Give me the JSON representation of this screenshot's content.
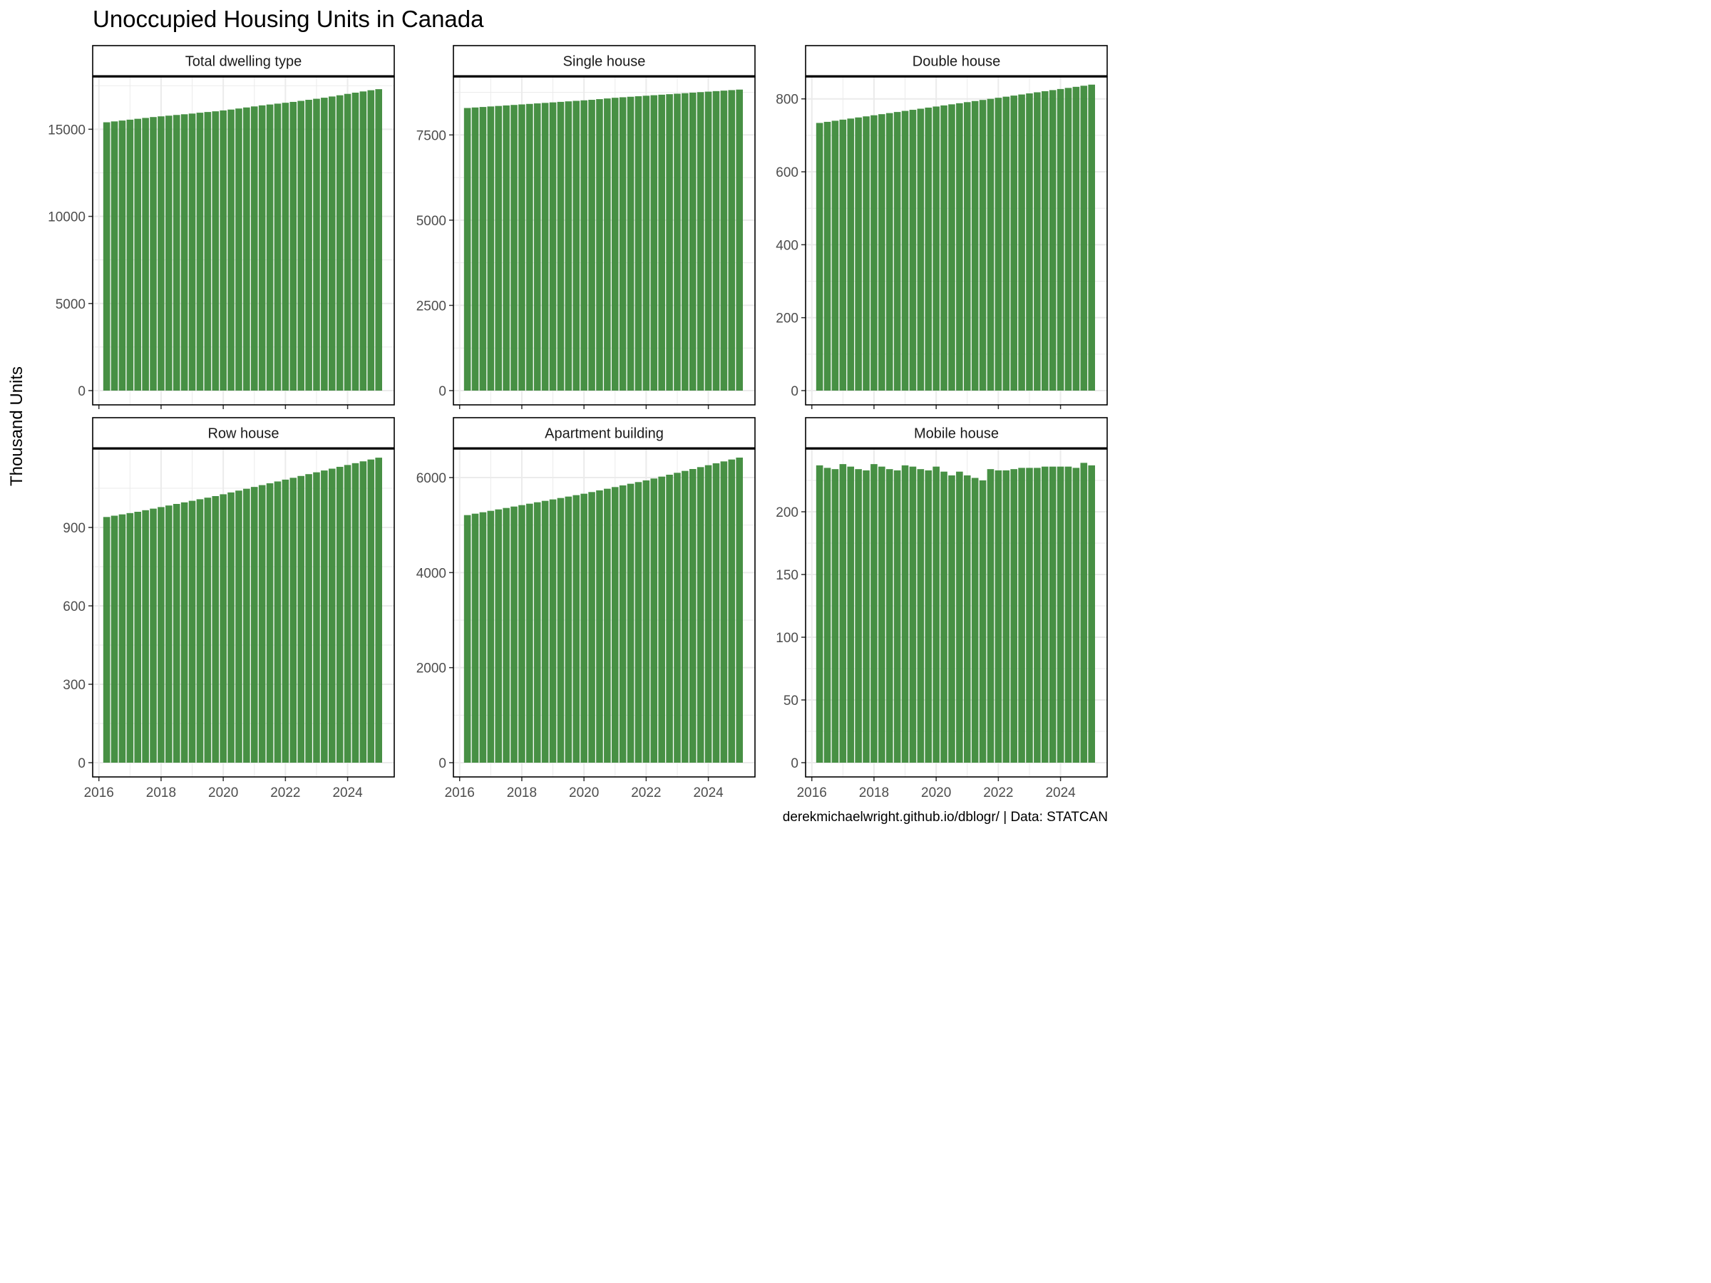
{
  "title": "Unoccupied Housing Units in Canada",
  "ylabel": "Thousand Units",
  "caption": "derekmichaelwright.github.io/dblogr/ | Data: STATCAN",
  "colors": {
    "bar": "#3d8a3a",
    "grid": "#ebebeb",
    "border": "#000000",
    "tick_text": "#4d4d4d"
  },
  "chart_data": [
    {
      "type": "bar",
      "title": "Total dwelling type",
      "x_start": 2016.25,
      "x_step": 0.25,
      "xlim": [
        2015.8,
        2025.5
      ],
      "x_ticks": [
        2016,
        2018,
        2020,
        2022,
        2024
      ],
      "ylim": [
        0,
        18000
      ],
      "y_ticks": [
        0,
        5000,
        10000,
        15000
      ],
      "values": [
        15400,
        15450,
        15500,
        15550,
        15600,
        15650,
        15700,
        15740,
        15780,
        15820,
        15860,
        15900,
        15950,
        15990,
        16030,
        16080,
        16130,
        16190,
        16250,
        16310,
        16370,
        16420,
        16470,
        16520,
        16570,
        16630,
        16690,
        16750,
        16810,
        16880,
        16950,
        17030,
        17100,
        17170,
        17240,
        17300
      ]
    },
    {
      "type": "bar",
      "title": "Single house",
      "x_start": 2016.25,
      "x_step": 0.25,
      "xlim": [
        2015.8,
        2025.5
      ],
      "x_ticks": [
        2016,
        2018,
        2020,
        2022,
        2024
      ],
      "ylim": [
        0,
        9200
      ],
      "y_ticks": [
        0,
        2500,
        5000,
        7500
      ],
      "values": [
        8290,
        8305,
        8320,
        8335,
        8350,
        8365,
        8380,
        8395,
        8410,
        8425,
        8440,
        8455,
        8470,
        8485,
        8500,
        8515,
        8530,
        8550,
        8570,
        8590,
        8605,
        8620,
        8635,
        8650,
        8665,
        8680,
        8695,
        8710,
        8725,
        8740,
        8755,
        8770,
        8785,
        8800,
        8815,
        8830
      ]
    },
    {
      "type": "bar",
      "title": "Double house",
      "x_start": 2016.25,
      "x_step": 0.25,
      "xlim": [
        2015.8,
        2025.5
      ],
      "x_ticks": [
        2016,
        2018,
        2020,
        2022,
        2024
      ],
      "ylim": [
        0,
        860
      ],
      "y_ticks": [
        0,
        200,
        400,
        600,
        800
      ],
      "values": [
        734,
        737,
        740,
        743,
        746,
        749,
        752,
        755,
        758,
        761,
        764,
        767,
        770,
        773,
        776,
        779,
        782,
        785,
        788,
        791,
        794,
        797,
        800,
        803,
        806,
        809,
        812,
        815,
        818,
        821,
        824,
        827,
        830,
        833,
        836,
        839
      ]
    },
    {
      "type": "bar",
      "title": "Row house",
      "x_start": 2016.25,
      "x_step": 0.25,
      "xlim": [
        2015.8,
        2025.5
      ],
      "x_ticks": [
        2016,
        2018,
        2020,
        2022,
        2024
      ],
      "ylim": [
        0,
        1200
      ],
      "y_ticks": [
        0,
        300,
        600,
        900
      ],
      "values": [
        940,
        945,
        950,
        955,
        960,
        966,
        972,
        978,
        984,
        990,
        996,
        1002,
        1008,
        1014,
        1020,
        1027,
        1034,
        1041,
        1048,
        1055,
        1062,
        1069,
        1076,
        1083,
        1090,
        1097,
        1104,
        1111,
        1118,
        1125,
        1132,
        1139,
        1146,
        1153,
        1160,
        1167
      ]
    },
    {
      "type": "bar",
      "title": "Apartment building",
      "x_start": 2016.25,
      "x_step": 0.25,
      "xlim": [
        2015.8,
        2025.5
      ],
      "x_ticks": [
        2016,
        2018,
        2020,
        2022,
        2024
      ],
      "ylim": [
        0,
        6600
      ],
      "y_ticks": [
        0,
        2000,
        4000,
        6000
      ],
      "values": [
        5210,
        5240,
        5270,
        5300,
        5330,
        5360,
        5390,
        5420,
        5450,
        5480,
        5510,
        5540,
        5570,
        5600,
        5630,
        5660,
        5695,
        5730,
        5765,
        5800,
        5835,
        5870,
        5905,
        5940,
        5980,
        6020,
        6060,
        6100,
        6140,
        6180,
        6220,
        6260,
        6300,
        6340,
        6380,
        6420
      ]
    },
    {
      "type": "bar",
      "title": "Mobile house",
      "x_start": 2016.25,
      "x_step": 0.25,
      "xlim": [
        2015.8,
        2025.5
      ],
      "x_ticks": [
        2016,
        2018,
        2020,
        2022,
        2024
      ],
      "ylim": [
        0,
        250
      ],
      "y_ticks": [
        0,
        50,
        100,
        150,
        200
      ],
      "values": [
        237,
        235,
        234,
        238,
        236,
        234,
        233,
        238,
        236,
        234,
        233,
        237,
        236,
        234,
        233,
        236,
        232,
        229,
        232,
        229,
        227,
        225,
        234,
        233,
        233,
        234,
        235,
        235,
        235,
        236,
        236,
        236,
        236,
        235,
        239,
        237
      ]
    }
  ]
}
